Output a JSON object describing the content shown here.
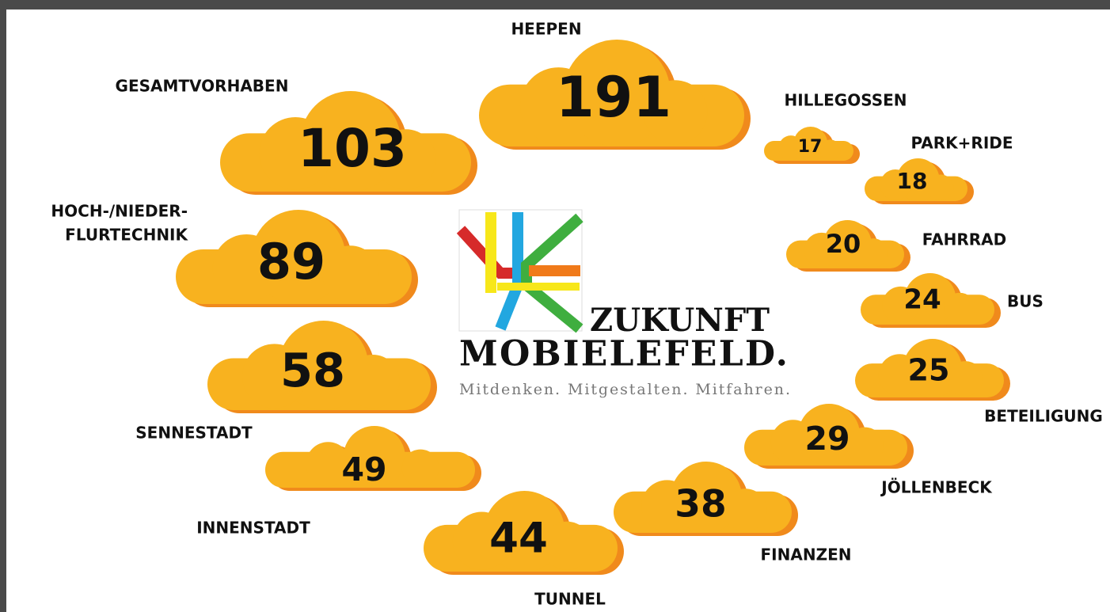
{
  "clouds": [
    {
      "label": "HEEPEN",
      "value": "191"
    },
    {
      "label": "GESAMTVORHABEN",
      "value": "103"
    },
    {
      "label": "HILLEGOSSEN",
      "value": "17"
    },
    {
      "label": "PARK+RIDE",
      "value": "18"
    },
    {
      "label": "HOCH-/NIEDER-",
      "label2": "FLURTECHNIK",
      "value": "89"
    },
    {
      "label": "FAHRRAD",
      "value": "20"
    },
    {
      "label": "BUS",
      "value": "24"
    },
    {
      "label": "SENNESTADT",
      "value": "58"
    },
    {
      "label": "BETEILIGUNG",
      "value": "25"
    },
    {
      "label": "JÖLLENBECK",
      "value": "29"
    },
    {
      "label": "INNENSTADT",
      "value": "49"
    },
    {
      "label": "FINANZEN",
      "value": "38"
    },
    {
      "label": "TUNNEL",
      "value": "44"
    }
  ],
  "logo": {
    "line1": "ZUKUNFT",
    "line2": "MOBIELEFELD.",
    "tagline": "Mitdenken. Mitgestalten. Mitfahren."
  }
}
